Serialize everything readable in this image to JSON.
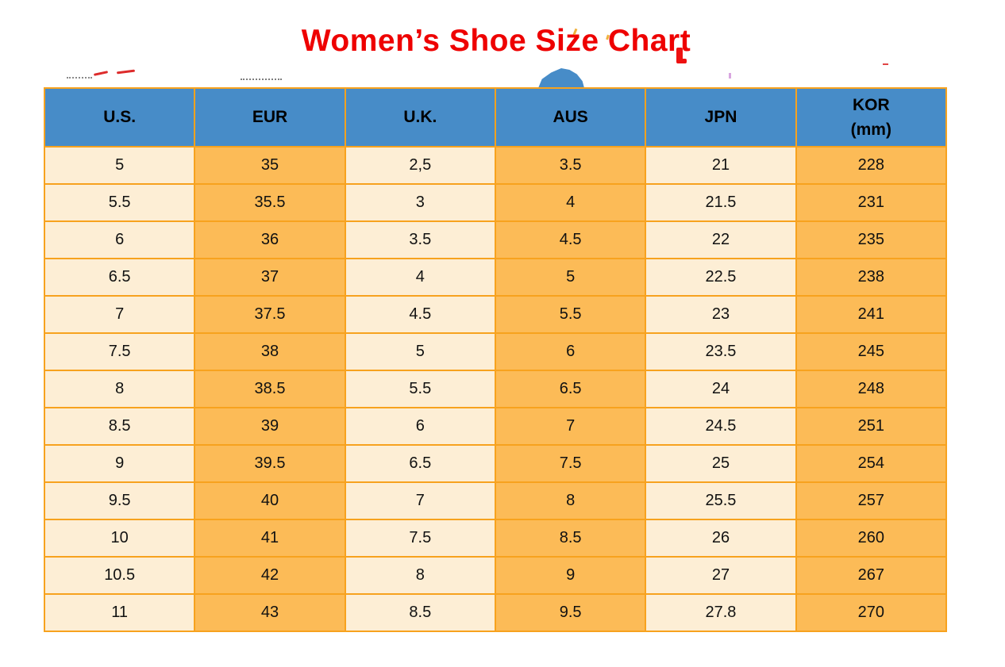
{
  "page": {
    "title": "Women’s Shoe Size Chart"
  },
  "table": {
    "headers": [
      "U.S.",
      "EUR",
      "U.K.",
      "AUS",
      "JPN",
      "KOR\n(mm)"
    ]
  },
  "chart_data": {
    "type": "table",
    "title": "Women’s Shoe Size Chart",
    "columns": [
      "U.S.",
      "EUR",
      "U.K.",
      "AUS",
      "JPN",
      "KOR (mm)"
    ],
    "rows": [
      [
        "5",
        "35",
        "2,5",
        "3.5",
        "21",
        "228"
      ],
      [
        "5.5",
        "35.5",
        "3",
        "4",
        "21.5",
        "231"
      ],
      [
        "6",
        "36",
        "3.5",
        "4.5",
        "22",
        "235"
      ],
      [
        "6.5",
        "37",
        "4",
        "5",
        "22.5",
        "238"
      ],
      [
        "7",
        "37.5",
        "4.5",
        "5.5",
        "23",
        "241"
      ],
      [
        "7.5",
        "38",
        "5",
        "6",
        "23.5",
        "245"
      ],
      [
        "8",
        "38.5",
        "5.5",
        "6.5",
        "24",
        "248"
      ],
      [
        "8.5",
        "39",
        "6",
        "7",
        "24.5",
        "251"
      ],
      [
        "9",
        "39.5",
        "6.5",
        "7.5",
        "25",
        "254"
      ],
      [
        "9.5",
        "40",
        "7",
        "8",
        "25.5",
        "257"
      ],
      [
        "10",
        "41",
        "7.5",
        "8.5",
        "26",
        "260"
      ],
      [
        "10.5",
        "42",
        "8",
        "9",
        "27",
        "267"
      ],
      [
        "11",
        "43",
        "8.5",
        "9.5",
        "27.8",
        "270"
      ]
    ],
    "layout": {
      "header_bg": "#478cc8",
      "odd_column_bg": "#fdeed5",
      "even_column_bg": "#fcbb57",
      "border_color": "#f7a21e",
      "title_color": "#ee0000",
      "grid": true
    }
  }
}
